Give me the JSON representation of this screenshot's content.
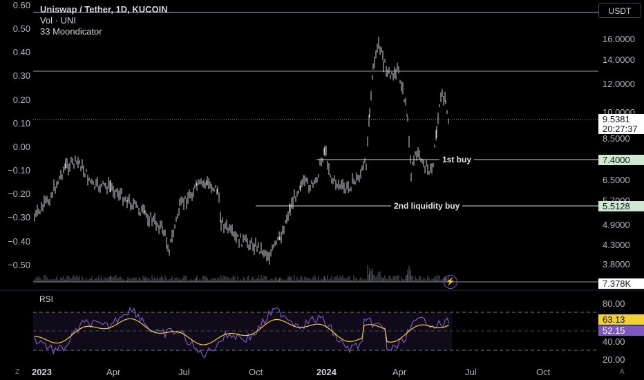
{
  "legend": {
    "title": "Uniswap / Tether, 1D, KUCOIN",
    "vol": "Vol · UNI",
    "indicator": "33 Moondicator"
  },
  "currency_button": "USDT",
  "left_axis_ticks": [
    "0.60",
    "0.50",
    "0.40",
    "0.30",
    "0.20",
    "0.10",
    "0.00",
    "−0.10",
    "−0.20",
    "−0.30",
    "−0.40",
    "−0.50"
  ],
  "price_axis_ticks": [
    "16.0000",
    "14.0000",
    "12.0000",
    "10.0000",
    "8.5000",
    "6.5000",
    "5.7000",
    "4.9000",
    "4.3000",
    "3.8000"
  ],
  "price_tags": {
    "current_price": "9.5381",
    "countdown": "20:27:37",
    "first_buy_price": "7.4000",
    "liquidity_price": "5.5128",
    "volume": "7.378K"
  },
  "annotations": {
    "first_buy": "1st buy",
    "liquidity_buy": "2nd liquidity buy"
  },
  "rsi": {
    "label": "RSI",
    "ticks": [
      "80.00",
      "40.00",
      "20.00"
    ],
    "value_yellow": "63.13",
    "value_purple": "52.15"
  },
  "time_axis": [
    "2023",
    "Apr",
    "Jul",
    "Oct",
    "2024",
    "Apr",
    "Jul",
    "Oct"
  ],
  "corner_buttons": {
    "left": "Z",
    "right": "A"
  },
  "colors": {
    "background": "#000000",
    "rsi_line": "#7e57c2",
    "rsi_ma": "#f5d033",
    "tag_green": "#cfe8d0",
    "purple_tag": "#7e57c2",
    "yellow_tag": "#f5d033"
  }
}
